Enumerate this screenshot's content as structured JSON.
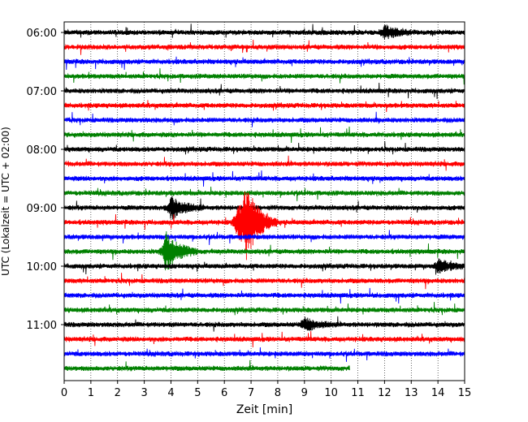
{
  "chart_data": {
    "type": "line",
    "title": "",
    "xlabel": "Zeit  [min]",
    "ylabel": "UTC (Lokalzeit = UTC + 02:00)",
    "xlim": [
      0,
      15
    ],
    "x_ticks": [
      "0",
      "1",
      "2",
      "3",
      "4",
      "5",
      "6",
      "7",
      "8",
      "9",
      "10",
      "11",
      "12",
      "13",
      "14",
      "15"
    ],
    "y_tick_labels": [
      "06:00",
      "07:00",
      "08:00",
      "09:00",
      "10:00",
      "11:00"
    ],
    "grid": "vertical dotted at each minute",
    "colors": [
      "#000000",
      "#ff0000",
      "#0000ff",
      "#008000"
    ],
    "series": [
      {
        "start_utc": "06:00",
        "end_min": 15,
        "color": "#000000"
      },
      {
        "start_utc": "06:15",
        "end_min": 15,
        "color": "#ff0000"
      },
      {
        "start_utc": "06:30",
        "end_min": 15,
        "color": "#0000ff"
      },
      {
        "start_utc": "06:45",
        "end_min": 15,
        "color": "#008000"
      },
      {
        "start_utc": "07:00",
        "end_min": 15,
        "color": "#000000"
      },
      {
        "start_utc": "07:15",
        "end_min": 15,
        "color": "#ff0000"
      },
      {
        "start_utc": "07:30",
        "end_min": 15,
        "color": "#0000ff"
      },
      {
        "start_utc": "07:45",
        "end_min": 15,
        "color": "#008000"
      },
      {
        "start_utc": "08:00",
        "end_min": 15,
        "color": "#000000"
      },
      {
        "start_utc": "08:15",
        "end_min": 15,
        "color": "#ff0000"
      },
      {
        "start_utc": "08:30",
        "end_min": 15,
        "color": "#0000ff"
      },
      {
        "start_utc": "08:45",
        "end_min": 15,
        "color": "#008000"
      },
      {
        "start_utc": "09:00",
        "end_min": 15,
        "color": "#000000"
      },
      {
        "start_utc": "09:15",
        "end_min": 15,
        "color": "#ff0000"
      },
      {
        "start_utc": "09:30",
        "end_min": 15,
        "color": "#0000ff"
      },
      {
        "start_utc": "09:45",
        "end_min": 15,
        "color": "#008000"
      },
      {
        "start_utc": "10:00",
        "end_min": 15,
        "color": "#000000"
      },
      {
        "start_utc": "10:15",
        "end_min": 15,
        "color": "#ff0000"
      },
      {
        "start_utc": "10:30",
        "end_min": 15,
        "color": "#0000ff"
      },
      {
        "start_utc": "10:45",
        "end_min": 15,
        "color": "#008000"
      },
      {
        "start_utc": "11:00",
        "end_min": 15,
        "color": "#000000"
      },
      {
        "start_utc": "11:15",
        "end_min": 15,
        "color": "#ff0000"
      },
      {
        "start_utc": "11:30",
        "end_min": 15,
        "color": "#0000ff"
      },
      {
        "start_utc": "11:45",
        "end_min": 10.7,
        "color": "#008000"
      }
    ],
    "events": [
      {
        "trace_utc": "09:15",
        "min": 6.8,
        "amplitude": "very large"
      },
      {
        "trace_utc": "09:15",
        "min": 6.5,
        "amplitude": "large"
      },
      {
        "trace_utc": "09:45",
        "min": 3.8,
        "amplitude": "large"
      },
      {
        "trace_utc": "09:00",
        "min": 4.0,
        "amplitude": "medium"
      },
      {
        "trace_utc": "06:00",
        "min": 12.0,
        "amplitude": "small"
      },
      {
        "trace_utc": "10:00",
        "min": 14.0,
        "amplitude": "small"
      },
      {
        "trace_utc": "11:00",
        "min": 9.0,
        "amplitude": "small"
      }
    ]
  }
}
